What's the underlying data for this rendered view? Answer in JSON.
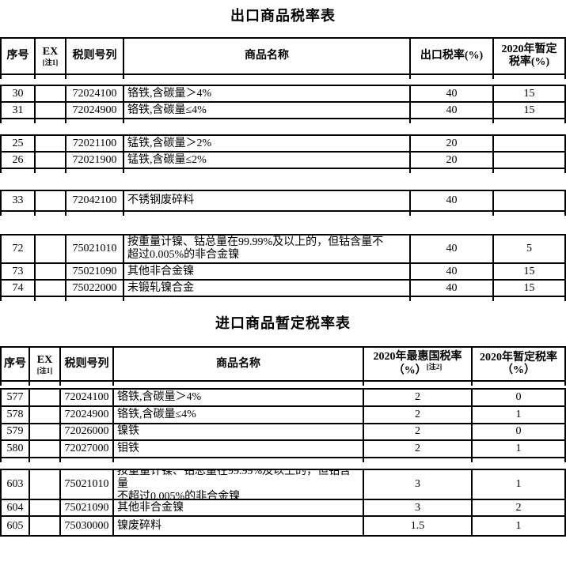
{
  "export_table": {
    "title": "出口商品税率表",
    "header": {
      "seq": "序号",
      "ex": "EX",
      "ex_note": "[注1]",
      "code": "税则号列",
      "name": "商品名称",
      "rate": "出口税率(%)",
      "temp_line1": "2020年暂定",
      "temp_line2": "税率(%)"
    },
    "groups": [
      {
        "rows": [
          {
            "no": "30",
            "ex": "",
            "code": "72024100",
            "name": "铬铁,含碳量＞4%",
            "rate": "40",
            "temp": "15"
          },
          {
            "no": "31",
            "ex": "",
            "code": "72024900",
            "name": "铬铁,含碳量≤4%",
            "rate": "40",
            "temp": "15"
          }
        ]
      },
      {
        "rows": [
          {
            "no": "25",
            "ex": "",
            "code": "72021100",
            "name": "锰铁,含碳量＞2%",
            "rate": "20",
            "temp": ""
          },
          {
            "no": "26",
            "ex": "",
            "code": "72021900",
            "name": "锰铁,含碳量≤2%",
            "rate": "20",
            "temp": ""
          }
        ]
      },
      {
        "rows": [
          {
            "no": "33",
            "ex": "",
            "code": "72042100",
            "name": "不锈钢废碎料",
            "rate": "40",
            "temp": ""
          }
        ]
      },
      {
        "rows": [
          {
            "no": "72",
            "ex": "",
            "code": "75021010",
            "name": "按重量计镍、钴总量在99.99%及以上的，但钴含量不\n超过0.005%的非合金镍",
            "rate": "40",
            "temp": "5"
          },
          {
            "no": "73",
            "ex": "",
            "code": "75021090",
            "name": "其他非合金镍",
            "rate": "40",
            "temp": "15"
          },
          {
            "no": "74",
            "ex": "",
            "code": "75022000",
            "name": "未锻轧镍合金",
            "rate": "40",
            "temp": "15"
          }
        ]
      }
    ]
  },
  "import_table": {
    "title": "进口商品暂定税率表",
    "header": {
      "seq": "序号",
      "ex": "EX",
      "ex_note": "[注1]",
      "code": "税则号列",
      "name": "商品名称",
      "mfn_line1": "2020年最惠国税率",
      "mfn_line2": "（%）",
      "mfn_sup": "[注2]",
      "temp_line1": "2020年暂定税率",
      "temp_line2": "（%）"
    },
    "groups": [
      {
        "rows": [
          {
            "no": "577",
            "ex": "",
            "code": "72024100",
            "name": "铬铁,含碳量＞4%",
            "rate": "2",
            "temp": "0"
          },
          {
            "no": "578",
            "ex": "",
            "code": "72024900",
            "name": "铬铁,含碳量≤4%",
            "rate": "2",
            "temp": "1"
          },
          {
            "no": "579",
            "ex": "",
            "code": "72026000",
            "name": "镍铁",
            "rate": "2",
            "temp": "0"
          },
          {
            "no": "580",
            "ex": "",
            "code": "72027000",
            "name": "钼铁",
            "rate": "2",
            "temp": "1"
          }
        ]
      },
      {
        "rows": [
          {
            "no": "603",
            "ex": "",
            "code": "75021010",
            "name": "按重量计镍、钴总量在99.99%及以上的，但钴含量\n不超过0.005%的非合金镍",
            "rate": "3",
            "temp": "1"
          },
          {
            "no": "604",
            "ex": "",
            "code": "75021090",
            "name": "其他非合金镍",
            "rate": "3",
            "temp": "2"
          },
          {
            "no": "605",
            "ex": "",
            "code": "75030000",
            "name": "镍废碎料",
            "rate": "1.5",
            "temp": "1"
          }
        ]
      }
    ]
  }
}
